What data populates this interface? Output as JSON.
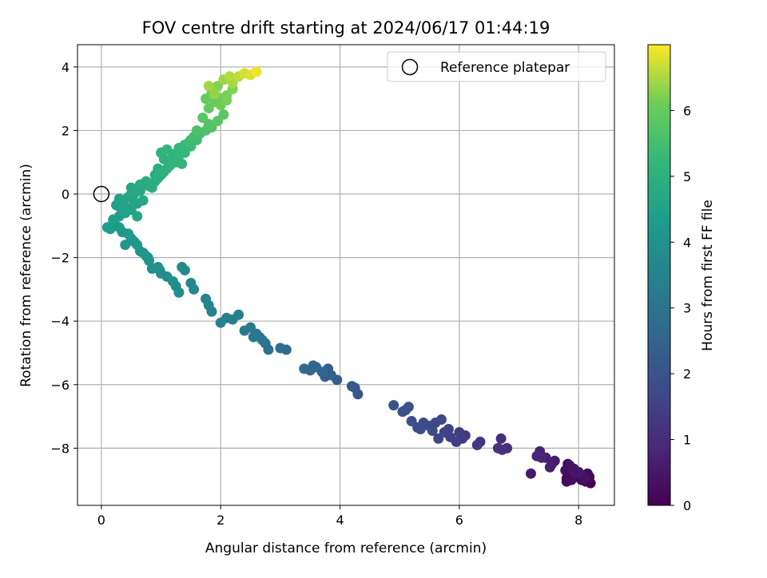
{
  "chart_data": {
    "type": "scatter",
    "title": "FOV centre drift starting at 2024/06/17 01:44:19",
    "xlabel": "Angular distance from reference (arcmin)",
    "ylabel": "Rotation from reference (arcmin)",
    "xlim": [
      -0.4,
      8.6
    ],
    "ylim": [
      -9.8,
      4.7
    ],
    "xticks": [
      0,
      2,
      4,
      6,
      8
    ],
    "yticks": [
      -8,
      -6,
      -4,
      -2,
      0,
      2,
      4
    ],
    "grid": true,
    "legend": {
      "position": "top-right",
      "entries": [
        {
          "label": "Reference platepar",
          "marker": "open-circle",
          "color": "#000000"
        }
      ]
    },
    "reference_point": {
      "x": 0,
      "y": 0
    },
    "colorbar": {
      "label": "Hours from first FF file",
      "range": [
        0,
        7.0
      ],
      "ticks": [
        0,
        1,
        2,
        3,
        4,
        5,
        6
      ],
      "colormap": "viridis"
    },
    "series": [
      {
        "x": [
          8.2,
          8.05,
          7.95,
          7.8,
          8.15,
          7.9,
          8.1,
          7.85,
          7.95,
          8.0,
          7.82,
          8.18,
          7.88,
          8.05,
          7.78,
          7.92,
          7.85,
          7.98,
          8.12,
          7.8,
          7.6,
          7.45,
          7.55,
          7.35,
          7.38,
          7.52,
          7.3,
          7.2,
          6.8,
          6.7,
          6.72,
          6.65,
          6.35,
          6.3,
          6.1,
          6.05,
          6.0,
          5.95,
          5.85,
          5.75,
          5.82,
          5.65,
          5.6,
          5.7,
          5.55,
          5.5,
          5.4,
          5.35,
          5.3,
          5.2,
          5.1,
          5.15,
          5.05,
          4.9,
          4.3,
          4.25,
          4.2,
          3.95,
          3.85,
          3.8,
          3.75,
          3.7,
          3.6,
          3.55,
          3.5,
          3.4,
          3.1,
          3.0,
          2.8,
          2.75,
          2.7,
          2.65,
          2.6,
          2.55,
          2.5,
          2.4,
          2.3,
          2.2,
          2.1,
          2.0,
          1.85,
          1.8,
          1.75,
          1.55,
          1.5,
          1.4,
          1.35,
          1.3,
          1.25,
          1.2,
          1.1,
          1.0,
          0.98,
          0.95,
          0.85,
          0.8,
          0.78,
          0.75,
          0.7,
          0.65,
          0.6,
          0.55,
          0.5,
          0.45,
          0.4,
          0.35,
          0.3,
          0.25,
          0.2,
          0.15,
          0.1,
          0.2,
          0.3,
          0.4,
          0.3,
          0.5,
          0.6,
          0.2,
          0.35,
          0.45,
          0.55,
          0.65,
          0.4,
          0.5,
          0.3,
          0.25,
          0.5,
          0.55,
          0.6,
          0.65,
          0.75,
          0.85,
          0.95,
          1.05,
          1.15,
          1.25,
          0.4,
          0.6,
          0.7,
          0.8,
          0.9,
          1.0,
          1.1,
          1.2,
          1.3,
          1.4,
          1.5,
          1.6,
          1.45,
          1.55,
          1.65,
          1.75,
          1.85,
          1.95,
          2.05,
          1.7,
          1.8,
          1.6,
          1.8,
          1.9,
          2.0,
          2.1,
          2.2,
          1.75,
          1.85,
          1.95,
          2.05,
          2.15,
          2.2,
          2.3,
          2.4,
          2.5,
          2.6,
          2.0,
          2.1,
          1.9,
          1.8,
          1.35,
          1.25,
          1.15,
          1.05,
          1.0,
          1.45,
          1.3,
          1.2,
          1.1,
          1.5,
          1.4,
          1.3,
          0.95,
          0.9
        ],
        "y": [
          -9.1,
          -9.0,
          -8.9,
          -9.05,
          -8.8,
          -8.7,
          -8.95,
          -8.6,
          -8.8,
          -8.75,
          -8.5,
          -8.9,
          -9.0,
          -8.85,
          -8.7,
          -8.65,
          -8.55,
          -8.8,
          -9.05,
          -8.95,
          -8.4,
          -8.3,
          -8.5,
          -8.1,
          -8.3,
          -8.6,
          -8.25,
          -8.8,
          -8.0,
          -7.7,
          -8.05,
          -8.0,
          -7.8,
          -7.9,
          -7.6,
          -7.7,
          -7.5,
          -7.8,
          -7.65,
          -7.5,
          -7.4,
          -7.7,
          -7.2,
          -7.1,
          -7.45,
          -7.3,
          -7.2,
          -7.4,
          -7.35,
          -7.15,
          -6.8,
          -6.7,
          -6.85,
          -6.65,
          -6.3,
          -6.1,
          -6.05,
          -5.85,
          -5.7,
          -5.5,
          -5.75,
          -5.6,
          -5.45,
          -5.4,
          -5.55,
          -5.5,
          -4.9,
          -4.85,
          -4.9,
          -4.7,
          -4.6,
          -4.5,
          -4.4,
          -4.5,
          -4.2,
          -4.3,
          -3.8,
          -3.95,
          -3.9,
          -4.05,
          -3.7,
          -3.5,
          -3.3,
          -3.0,
          -2.8,
          -2.4,
          -2.3,
          -3.1,
          -2.9,
          -2.75,
          -2.6,
          -2.5,
          -2.4,
          -2.3,
          -2.35,
          -2.1,
          -2.0,
          -1.95,
          -1.85,
          -1.8,
          -1.6,
          -1.5,
          -1.4,
          -1.25,
          -1.6,
          -1.2,
          -1.05,
          -1.0,
          -0.9,
          -1.1,
          -1.05,
          -0.8,
          -0.7,
          -0.6,
          -0.4,
          -0.5,
          -0.3,
          -0.85,
          -0.2,
          -0.1,
          0.0,
          0.1,
          -0.4,
          0.2,
          -0.15,
          -0.35,
          0.0,
          -0.3,
          0.1,
          0.3,
          0.4,
          0.2,
          0.5,
          0.7,
          0.9,
          1.0,
          -0.5,
          -0.7,
          -0.2,
          0.25,
          0.4,
          0.6,
          0.8,
          1.1,
          1.2,
          1.3,
          1.5,
          1.7,
          1.6,
          1.8,
          1.9,
          2.0,
          2.1,
          2.3,
          2.5,
          2.4,
          2.2,
          2.0,
          2.7,
          2.9,
          3.0,
          3.1,
          3.3,
          3.0,
          3.2,
          3.4,
          3.6,
          3.7,
          3.5,
          3.7,
          3.8,
          3.75,
          3.85,
          2.8,
          2.95,
          3.15,
          3.4,
          0.95,
          1.0,
          0.9,
          1.1,
          1.3,
          1.5,
          1.35,
          1.25,
          1.4,
          1.7,
          1.55,
          1.45,
          0.8,
          0.6
        ],
        "hours": [
          0.05,
          0.1,
          0.15,
          0.2,
          0.25,
          0.3,
          0.35,
          0.4,
          0.45,
          0.5,
          0.12,
          0.18,
          0.22,
          0.28,
          0.32,
          0.38,
          0.42,
          0.48,
          0.08,
          0.14,
          0.6,
          0.7,
          0.65,
          0.75,
          0.8,
          0.7,
          0.85,
          0.55,
          1.0,
          1.05,
          1.1,
          1.15,
          1.2,
          1.25,
          1.3,
          1.35,
          1.4,
          1.45,
          1.5,
          1.55,
          1.6,
          1.65,
          1.7,
          1.72,
          1.75,
          1.78,
          1.8,
          1.83,
          1.86,
          1.9,
          1.95,
          1.98,
          1.93,
          2.0,
          2.1,
          2.15,
          2.2,
          2.3,
          2.35,
          2.4,
          2.45,
          2.5,
          2.55,
          2.6,
          2.65,
          2.7,
          2.8,
          2.85,
          2.9,
          2.95,
          3.0,
          3.05,
          3.1,
          3.15,
          3.2,
          3.25,
          3.3,
          3.35,
          3.4,
          3.45,
          3.5,
          3.55,
          3.6,
          3.7,
          3.72,
          3.75,
          3.78,
          3.8,
          3.82,
          3.85,
          3.88,
          3.9,
          3.92,
          3.95,
          3.98,
          4.0,
          4.02,
          4.05,
          4.08,
          4.1,
          4.12,
          4.15,
          4.18,
          4.2,
          4.22,
          4.25,
          4.28,
          4.3,
          4.32,
          4.35,
          4.38,
          4.4,
          4.42,
          4.45,
          4.48,
          4.5,
          4.52,
          4.3,
          4.55,
          4.58,
          4.6,
          4.62,
          4.45,
          4.65,
          4.5,
          4.4,
          4.7,
          4.6,
          4.75,
          4.8,
          4.85,
          4.9,
          4.95,
          5.0,
          5.05,
          5.1,
          4.55,
          4.62,
          4.7,
          4.78,
          4.85,
          4.92,
          5.0,
          5.12,
          5.18,
          5.25,
          5.32,
          5.4,
          5.4,
          5.48,
          5.55,
          5.62,
          5.7,
          5.78,
          5.85,
          5.8,
          5.72,
          5.6,
          5.95,
          6.02,
          6.1,
          6.18,
          6.25,
          6.0,
          6.12,
          6.25,
          6.4,
          6.55,
          6.48,
          6.62,
          6.75,
          6.8,
          6.9,
          6.08,
          6.2,
          6.35,
          6.45,
          5.15,
          5.08,
          5.02,
          5.0,
          5.05,
          5.2,
          5.15,
          5.1,
          5.18,
          5.3,
          5.25,
          5.22,
          4.95,
          4.9
        ]
      }
    ]
  }
}
